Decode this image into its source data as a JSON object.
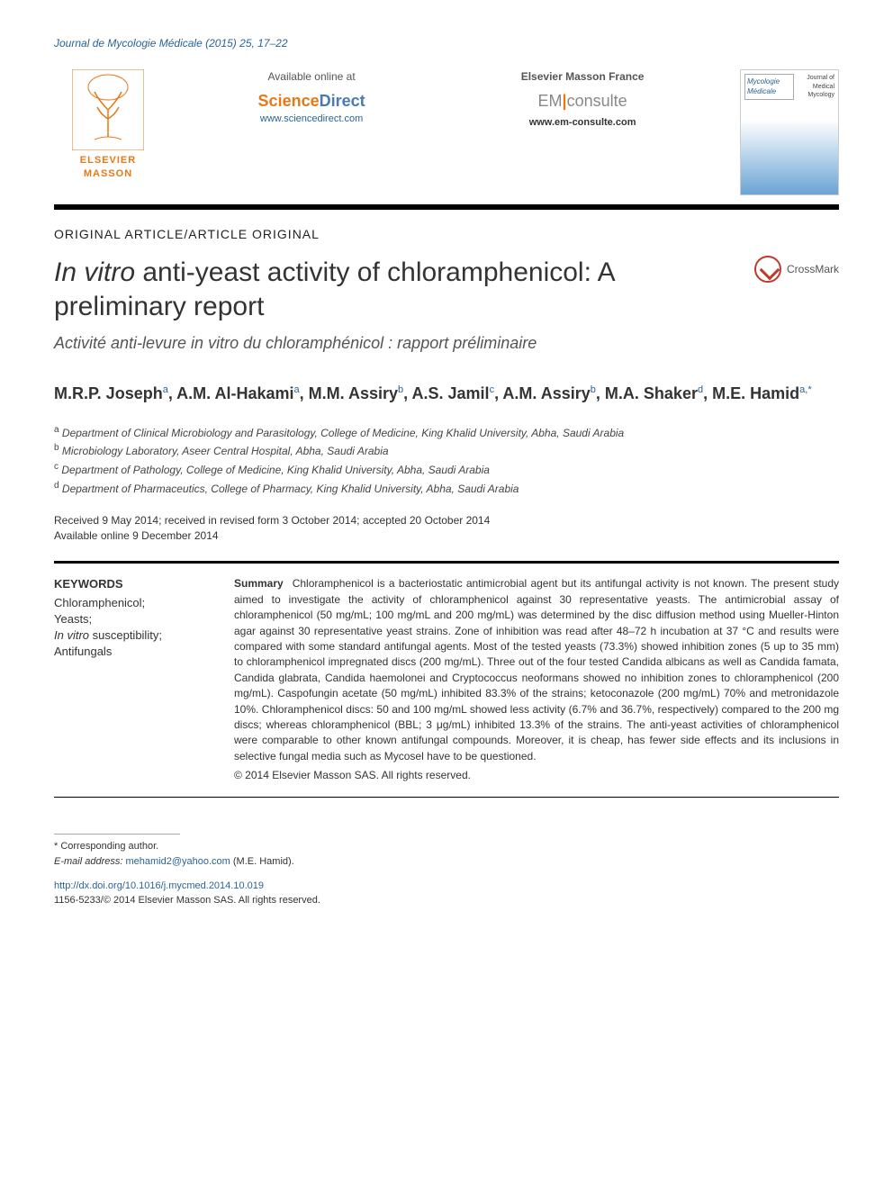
{
  "runningHead": {
    "journal": "Journal de Mycologie Médicale",
    "year": "(2015)",
    "volPages": "25, 17–22"
  },
  "header": {
    "publisherName": "ELSEVIER MASSON",
    "availableLabel": "Available online at",
    "sdSci": "Science",
    "sdDir": "Direct",
    "sdUrl": "www.sciencedirect.com",
    "emfLabel": "Elsevier Masson France",
    "emBrandLeft": "EM",
    "emBrandRight": "consulte",
    "emUrl": "www.em-consulte.com",
    "coverTitle": "Mycologie Médicale",
    "coverSub": "Journal of Medical Mycology"
  },
  "articleType": "ORIGINAL ARTICLE/ARTICLE ORIGINAL",
  "title": {
    "italicPart": "In vitro",
    "rest": " anti-yeast activity of chloramphenicol: A preliminary report"
  },
  "crossmarkLabel": "CrossMark",
  "subtitle": "Activité anti-levure in vitro du chloramphénicol : rapport préliminaire",
  "authors": [
    {
      "name": "M.R.P. Joseph",
      "aff": "a"
    },
    {
      "name": "A.M. Al-Hakami",
      "aff": "a"
    },
    {
      "name": "M.M. Assiry",
      "aff": "b"
    },
    {
      "name": "A.S. Jamil",
      "aff": "c"
    },
    {
      "name": "A.M. Assiry",
      "aff": "b"
    },
    {
      "name": "M.A. Shaker",
      "aff": "d"
    },
    {
      "name": "M.E. Hamid",
      "aff": "a,",
      "corr": "*"
    }
  ],
  "affiliations": [
    {
      "sup": "a",
      "text": "Department of Clinical Microbiology and Parasitology, College of Medicine, King Khalid University, Abha, Saudi Arabia"
    },
    {
      "sup": "b",
      "text": "Microbiology Laboratory, Aseer Central Hospital, Abha, Saudi Arabia"
    },
    {
      "sup": "c",
      "text": "Department of Pathology, College of Medicine, King Khalid University, Abha, Saudi Arabia"
    },
    {
      "sup": "d",
      "text": "Department of Pharmaceutics, College of Pharmacy, King Khalid University, Abha, Saudi Arabia"
    }
  ],
  "dates": {
    "line1": "Received 9 May 2014; received in revised form 3 October 2014; accepted 20 October 2014",
    "line2": "Available online 9 December 2014"
  },
  "keywords": {
    "head": "KEYWORDS",
    "items": "Chloramphenicol;\nYeasts;\nIn vitro susceptibility;\nAntifungals"
  },
  "summary": {
    "lead": "Summary",
    "body": "Chloramphenicol is a bacteriostatic antimicrobial agent but its antifungal activity is not known. The present study aimed to investigate the activity of chloramphenicol against 30 representative yeasts. The antimicrobial assay of chloramphenicol (50 mg/mL; 100 mg/mL and 200 mg/mL) was determined by the disc diffusion method using Mueller-Hinton agar against 30 representative yeast strains. Zone of inhibition was read after 48–72 h incubation at 37 °C and results were compared with some standard antifungal agents. Most of the tested yeasts (73.3%) showed inhibition zones (5 up to 35 mm) to chloramphenicol impregnated discs (200 mg/mL). Three out of the four tested Candida albicans as well as Candida famata, Candida glabrata, Candida haemolonei and Cryptococcus neoformans showed no inhibition zones to chloramphenicol (200 mg/mL). Caspofungin acetate (50 mg/mL) inhibited 83.3% of the strains; ketoconazole (200 mg/mL) 70% and metronidazole 10%. Chloramphenicol discs: 50 and 100 mg/mL showed less activity (6.7% and 36.7%, respectively) compared to the 200 mg discs; whereas chloramphenicol (BBL; 3 μg/mL) inhibited 13.3% of the strains. The anti-yeast activities of chloramphenicol were comparable to other known antifungal compounds. Moreover, it is cheap, has fewer side effects and its inclusions in selective fungal media such as Mycosel have to be questioned.",
    "copyright": "© 2014 Elsevier Masson SAS. All rights reserved."
  },
  "footer": {
    "corrLabel": "* Corresponding author.",
    "emailLabel": "E-mail address:",
    "email": "mehamid2@yahoo.com",
    "emailSuffix": "(M.E. Hamid).",
    "doi": "http://dx.doi.org/10.1016/j.mycmed.2014.10.019",
    "issn": "1156-5233/© 2014 Elsevier Masson SAS. All rights reserved."
  },
  "colors": {
    "link": "#2a6496",
    "orange": "#e67817",
    "text": "#333333"
  }
}
